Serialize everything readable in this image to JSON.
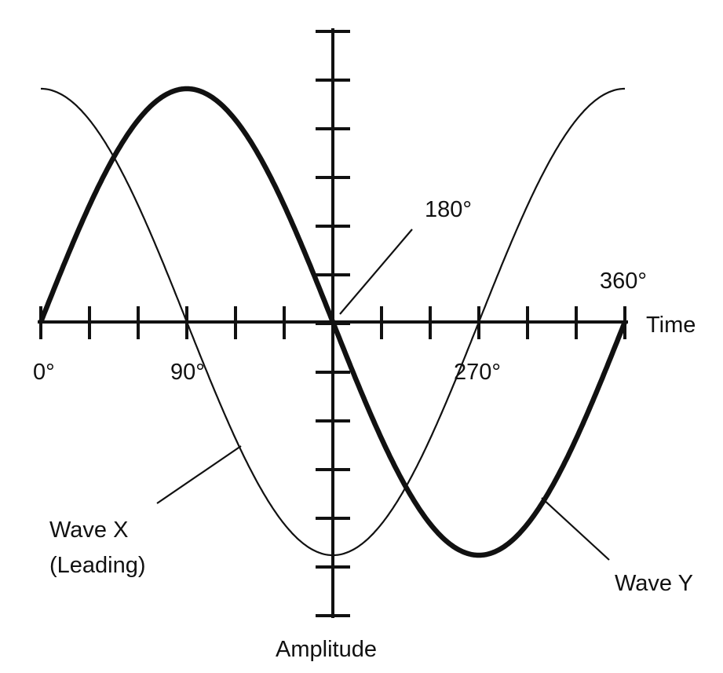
{
  "labels": {
    "deg0": "0°",
    "deg90": "90°",
    "deg180": "180°",
    "deg270": "270°",
    "deg360": "360°",
    "time": "Time",
    "amplitude": "Amplitude",
    "wave_x": "Wave X",
    "wave_x_note": "(Leading)",
    "wave_y": "Wave Y"
  }
}
